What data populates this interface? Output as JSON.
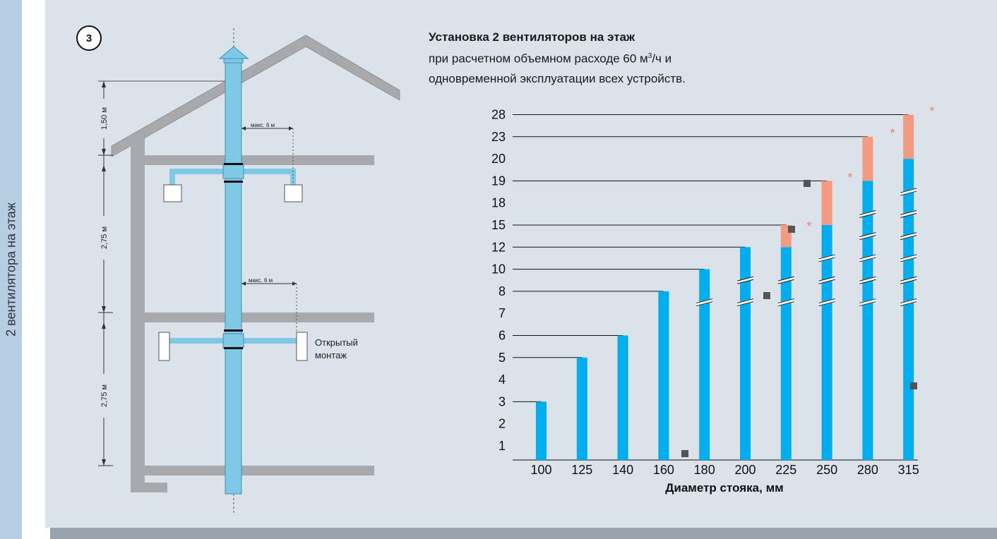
{
  "side_label": "2 вентилятора на этаж",
  "badge": "3",
  "title": "Установка 2 вентиляторов на этаж",
  "subtitle_line1": "при расчетном объемном расходе 60 м",
  "subtitle_sup": "3",
  "subtitle_line1_end": "/ч и",
  "subtitle_line2": "одновременной эксплуатации всех устройств.",
  "diagram": {
    "dim_top": "1,50 м",
    "dim_mid": "2,75 м",
    "dim_bottom": "2,75 м",
    "max_label": "макс. 6 м",
    "open_mount_line1": "Открытый",
    "open_mount_line2": "монтаж"
  },
  "colors": {
    "bar": "#00aeef",
    "bar_extra": "#f39a80",
    "star": "#f08070",
    "pipe": "#7fc8e6",
    "building": "#a7a9ac"
  },
  "chart_data": {
    "type": "bar",
    "xlabel": "Диаметр стояка, мм",
    "ylabel": "",
    "y_ticks": [
      "1",
      "2",
      "3",
      "4",
      "5",
      "6",
      "7",
      "8",
      "10",
      "12",
      "15",
      "18",
      "19",
      "20",
      "23",
      "28"
    ],
    "categories": [
      "100",
      "125",
      "140",
      "160",
      "180",
      "200",
      "225",
      "250",
      "280",
      "315"
    ],
    "series": [
      {
        "values": [
          3,
          5,
          6,
          8,
          10,
          12,
          12,
          15,
          19,
          20
        ]
      },
      {
        "values": [
          null,
          null,
          null,
          null,
          null,
          null,
          15,
          19,
          23,
          28
        ]
      }
    ],
    "star_marks": [
      "*",
      "*",
      "*",
      "*"
    ],
    "ylim": [
      0,
      28
    ],
    "grid": false
  }
}
